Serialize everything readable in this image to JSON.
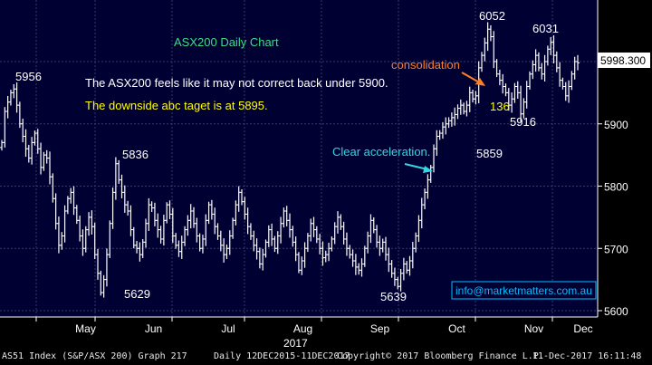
{
  "chart_data": {
    "type": "ohlc",
    "title": "ASX200 Daily Chart",
    "xlabel": "2017",
    "ylabel": "",
    "ylim": [
      5600,
      6100
    ],
    "y_ticks": [
      5600,
      5700,
      5800,
      5900
    ],
    "x_tick_labels": [
      "May",
      "Jun",
      "Jul",
      "Aug",
      "Sep",
      "Oct",
      "Nov",
      "Dec"
    ],
    "last_price": "5998.300",
    "grid": true,
    "series": [
      {
        "closes": [
          5870,
          5920,
          5935,
          5950,
          5956,
          5930,
          5900,
          5880,
          5860,
          5845,
          5870,
          5885,
          5860,
          5830,
          5850,
          5845,
          5815,
          5780,
          5740,
          5705,
          5720,
          5760,
          5780,
          5790,
          5765,
          5745,
          5720,
          5700,
          5730,
          5750,
          5735,
          5690,
          5660,
          5629,
          5650,
          5690,
          5740,
          5790,
          5836,
          5810,
          5790,
          5770,
          5760,
          5730,
          5705,
          5700,
          5690,
          5710,
          5740,
          5770,
          5765,
          5745,
          5730,
          5715,
          5745,
          5770,
          5755,
          5720,
          5705,
          5695,
          5710,
          5730,
          5745,
          5760,
          5740,
          5720,
          5700,
          5715,
          5745,
          5770,
          5755,
          5735,
          5720,
          5705,
          5690,
          5700,
          5720,
          5745,
          5770,
          5790,
          5775,
          5755,
          5735,
          5720,
          5705,
          5695,
          5675,
          5690,
          5710,
          5730,
          5715,
          5700,
          5720,
          5740,
          5760,
          5745,
          5730,
          5710,
          5690,
          5665,
          5680,
          5700,
          5720,
          5740,
          5730,
          5715,
          5700,
          5685,
          5690,
          5700,
          5715,
          5735,
          5750,
          5735,
          5715,
          5700,
          5690,
          5680,
          5670,
          5665,
          5675,
          5700,
          5720,
          5745,
          5730,
          5710,
          5700,
          5710,
          5690,
          5675,
          5660,
          5650,
          5639,
          5660,
          5675,
          5665,
          5680,
          5700,
          5720,
          5745,
          5770,
          5790,
          5810,
          5830,
          5860,
          5880,
          5885,
          5895,
          5900,
          5905,
          5910,
          5915,
          5925,
          5930,
          5920,
          5930,
          5950,
          5940,
          5945,
          5990,
          6010,
          6030,
          6052,
          6040,
          6000,
          5980,
          5970,
          5960,
          5950,
          5930,
          5940,
          5960,
          5950,
          5916,
          5935,
          5960,
          5980,
          5995,
          6010,
          5990,
          5980,
          6000,
          6020,
          6031,
          6010,
          5990,
          5970,
          5960,
          5945,
          5960,
          5980,
          6000,
          5998
        ]
      }
    ],
    "annotations": {
      "high_may": "5956",
      "low_jun": "5629",
      "high_jun": "5836",
      "low_sep": "5639",
      "low_oct": "5859",
      "high_oct": "6052",
      "high_nov": "6031",
      "low_nov": "5916",
      "range": "136",
      "consolidation": "consolidation",
      "acceleration": "Clear acceleration.",
      "comment1": "The ASX200 feels like it may not correct back under 5900.",
      "comment2": "The downside abc taget is at 5895.",
      "website": "info@marketmatters.com.au"
    }
  },
  "footer": {
    "ticker": "AS51 Index (S&P/ASX 200) Graph 217",
    "range": "Daily 12DEC2015-11DEC2017",
    "copyright": "Copyright© 2017 Bloomberg Finance L.P.",
    "timestamp": "11-Dec-2017 16:11:48"
  },
  "colors": {
    "background": "#000000",
    "plot_bg": "#000033",
    "bars": "#ffffff",
    "grid": "#3a3a66",
    "title": "#3ddc84",
    "comment1": "#ffffff",
    "comment2": "#ffff00",
    "consolidation": "#ff7f27",
    "acceleration": "#35d6e0",
    "range": "#ffff00",
    "website": "#00bfff"
  }
}
